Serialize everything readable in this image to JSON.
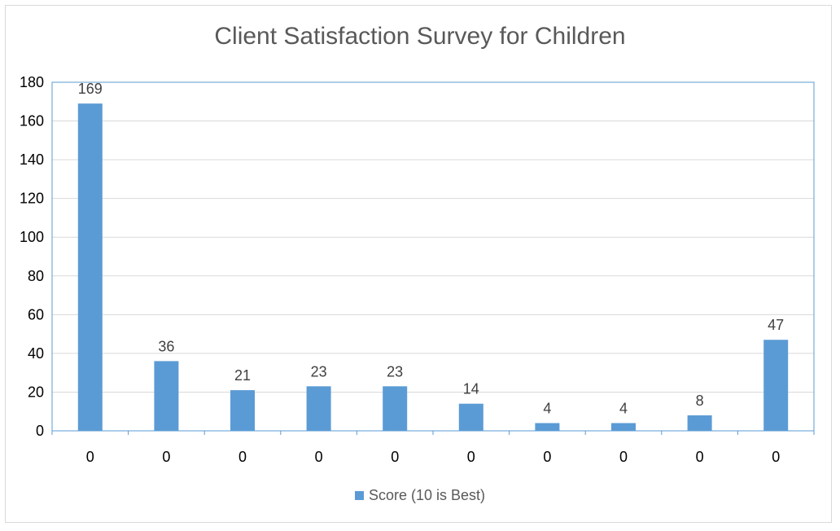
{
  "chart_data": {
    "type": "bar",
    "title": "Client Satisfaction Survey for Children",
    "categories": [
      "0",
      "0",
      "0",
      "0",
      "0",
      "0",
      "0",
      "0",
      "0",
      "0"
    ],
    "series": [
      {
        "name": "Score (10 is Best)",
        "values": [
          169,
          36,
          21,
          23,
          23,
          14,
          4,
          4,
          8,
          47
        ],
        "color": "#5b9bd5"
      }
    ],
    "ylim": [
      0,
      180
    ],
    "yticks": [
      0,
      20,
      40,
      60,
      80,
      100,
      120,
      140,
      160,
      180
    ],
    "grid": true,
    "legend": "bottom"
  }
}
